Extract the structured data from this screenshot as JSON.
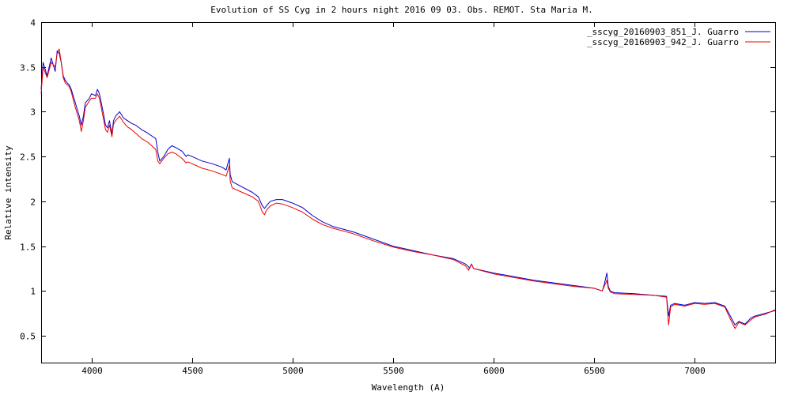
{
  "chart_data": {
    "type": "line",
    "title": "Evolution of SS Cyg in 2 hours  night 2016 09 03.  Obs. REMOT. Sta Maria M.",
    "xlabel": "Wavelength (A)",
    "ylabel": "Relative intensity",
    "xlim": [
      3750,
      7400
    ],
    "ylim": [
      0.2,
      4.0
    ],
    "xticks": [
      4000,
      4500,
      5000,
      5500,
      6000,
      6500,
      7000
    ],
    "yticks": [
      0.5,
      1,
      1.5,
      2,
      2.5,
      3,
      3.5,
      4
    ],
    "xtick_labels": [
      "4000",
      "4500",
      "5000",
      "5500",
      "6000",
      "6500",
      "7000"
    ],
    "ytick_labels": [
      "0.5",
      "1",
      "1.5",
      "2",
      "2.5",
      "3",
      "3.5",
      "4"
    ],
    "grid": false,
    "legend_position": "top-right",
    "series": [
      {
        "name": "_sscyg_20160903_851_J. Guarro",
        "color": "#0000cc",
        "x": [
          3750,
          3760,
          3780,
          3800,
          3820,
          3830,
          3840,
          3850,
          3860,
          3870,
          3880,
          3890,
          3900,
          3920,
          3940,
          3950,
          3960,
          3970,
          3990,
          4000,
          4020,
          4030,
          4040,
          4060,
          4070,
          4080,
          4090,
          4102,
          4110,
          4120,
          4140,
          4160,
          4180,
          4200,
          4220,
          4250,
          4280,
          4300,
          4320,
          4330,
          4340,
          4360,
          4380,
          4400,
          4420,
          4450,
          4471,
          4480,
          4500,
          4550,
          4600,
          4650,
          4670,
          4686,
          4690,
          4700,
          4750,
          4800,
          4830,
          4850,
          4861,
          4870,
          4890,
          4920,
          4950,
          5000,
          5050,
          5100,
          5150,
          5200,
          5300,
          5400,
          5500,
          5600,
          5700,
          5800,
          5860,
          5876,
          5880,
          5890,
          5900,
          6000,
          6100,
          6200,
          6300,
          6400,
          6500,
          6540,
          6550,
          6563,
          6570,
          6580,
          6600,
          6700,
          6800,
          6860,
          6870,
          6880,
          6900,
          6950,
          7000,
          7050,
          7100,
          7150,
          7170,
          7200,
          7220,
          7250,
          7280,
          7300,
          7350,
          7400
        ],
        "y": [
          3.25,
          3.55,
          3.4,
          3.6,
          3.45,
          3.68,
          3.65,
          3.55,
          3.4,
          3.35,
          3.32,
          3.3,
          3.25,
          3.1,
          2.95,
          2.85,
          2.95,
          3.1,
          3.15,
          3.2,
          3.18,
          3.25,
          3.2,
          2.98,
          2.85,
          2.82,
          2.9,
          2.75,
          2.9,
          2.95,
          3.0,
          2.93,
          2.9,
          2.87,
          2.85,
          2.8,
          2.76,
          2.73,
          2.7,
          2.55,
          2.45,
          2.5,
          2.58,
          2.62,
          2.6,
          2.56,
          2.5,
          2.52,
          2.5,
          2.45,
          2.42,
          2.38,
          2.35,
          2.48,
          2.3,
          2.22,
          2.16,
          2.1,
          2.05,
          1.95,
          1.92,
          1.95,
          2.0,
          2.02,
          2.02,
          1.98,
          1.93,
          1.84,
          1.77,
          1.72,
          1.66,
          1.58,
          1.5,
          1.45,
          1.4,
          1.36,
          1.3,
          1.27,
          1.25,
          1.3,
          1.25,
          1.2,
          1.16,
          1.12,
          1.09,
          1.06,
          1.03,
          1.0,
          1.07,
          1.2,
          1.05,
          1.0,
          0.98,
          0.97,
          0.95,
          0.94,
          0.72,
          0.84,
          0.86,
          0.84,
          0.87,
          0.86,
          0.87,
          0.83,
          0.75,
          0.62,
          0.66,
          0.63,
          0.7,
          0.72,
          0.75,
          0.78
        ]
      },
      {
        "name": "_sscyg_20160903_942_J. Guarro",
        "color": "#ee0000",
        "x": [
          3750,
          3760,
          3780,
          3800,
          3820,
          3830,
          3840,
          3850,
          3860,
          3870,
          3880,
          3890,
          3900,
          3920,
          3940,
          3950,
          3960,
          3970,
          3990,
          4000,
          4020,
          4030,
          4040,
          4060,
          4070,
          4080,
          4090,
          4102,
          4110,
          4120,
          4140,
          4160,
          4180,
          4200,
          4220,
          4250,
          4280,
          4300,
          4320,
          4330,
          4340,
          4360,
          4380,
          4400,
          4420,
          4450,
          4471,
          4480,
          4500,
          4550,
          4600,
          4650,
          4670,
          4686,
          4690,
          4700,
          4750,
          4800,
          4830,
          4850,
          4861,
          4870,
          4890,
          4920,
          4950,
          5000,
          5050,
          5100,
          5150,
          5200,
          5300,
          5400,
          5500,
          5600,
          5700,
          5800,
          5860,
          5876,
          5880,
          5890,
          5900,
          6000,
          6100,
          6200,
          6300,
          6400,
          6500,
          6540,
          6550,
          6563,
          6570,
          6580,
          6600,
          6700,
          6800,
          6860,
          6870,
          6880,
          6900,
          6950,
          7000,
          7050,
          7100,
          7150,
          7170,
          7200,
          7220,
          7250,
          7280,
          7300,
          7350,
          7400
        ],
        "y": [
          3.2,
          3.5,
          3.38,
          3.55,
          3.5,
          3.65,
          3.7,
          3.55,
          3.38,
          3.32,
          3.3,
          3.28,
          3.22,
          3.05,
          2.9,
          2.78,
          2.9,
          3.05,
          3.12,
          3.15,
          3.15,
          3.2,
          3.15,
          2.92,
          2.8,
          2.77,
          2.85,
          2.72,
          2.86,
          2.9,
          2.95,
          2.88,
          2.83,
          2.8,
          2.76,
          2.7,
          2.66,
          2.62,
          2.58,
          2.45,
          2.42,
          2.48,
          2.53,
          2.55,
          2.53,
          2.48,
          2.43,
          2.44,
          2.42,
          2.37,
          2.34,
          2.3,
          2.28,
          2.4,
          2.23,
          2.15,
          2.1,
          2.05,
          2.0,
          1.88,
          1.85,
          1.9,
          1.95,
          1.98,
          1.97,
          1.93,
          1.88,
          1.8,
          1.74,
          1.7,
          1.64,
          1.56,
          1.49,
          1.44,
          1.4,
          1.35,
          1.28,
          1.23,
          1.26,
          1.3,
          1.25,
          1.19,
          1.15,
          1.11,
          1.08,
          1.05,
          1.03,
          1.0,
          1.05,
          1.12,
          1.03,
          0.99,
          0.97,
          0.96,
          0.95,
          0.93,
          0.62,
          0.82,
          0.85,
          0.83,
          0.86,
          0.85,
          0.86,
          0.82,
          0.72,
          0.58,
          0.65,
          0.62,
          0.68,
          0.71,
          0.74,
          0.79
        ]
      }
    ]
  }
}
